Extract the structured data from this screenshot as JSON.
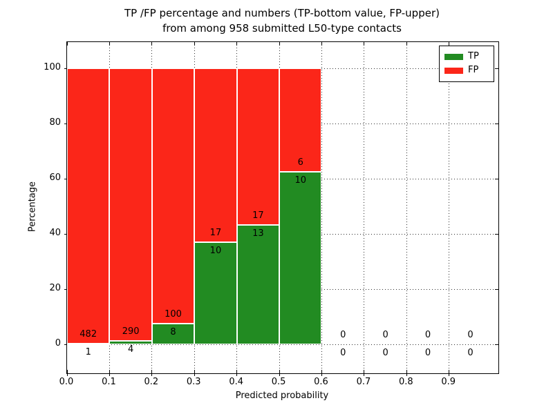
{
  "chart_data": {
    "type": "bar",
    "stacked": true,
    "title_line1": "TP /FP percentage and numbers (TP-bottom value, FP-upper)",
    "title_line2": "from among 958 submitted L50-type contacts",
    "xlabel": "Predicted probability",
    "ylabel": "Percentage",
    "total_submitted": 958,
    "x_ticks": [
      "0.0",
      "0.1",
      "0.2",
      "0.3",
      "0.4",
      "0.5",
      "0.6",
      "0.7",
      "0.8",
      "0.9"
    ],
    "y_ticks": [
      "0",
      "20",
      "40",
      "60",
      "80",
      "100"
    ],
    "y_tick_values": [
      0,
      20,
      40,
      60,
      80,
      100
    ],
    "ylim": [
      -10.5,
      109.5
    ],
    "xlim": [
      0,
      1.016
    ],
    "bin_width": 0.1,
    "grid": true,
    "legend_position": "upper-right",
    "legend": [
      {
        "label": "TP",
        "color": "#228b22"
      },
      {
        "label": "FP",
        "color": "#fb2619"
      }
    ],
    "bins": [
      {
        "x_start": 0.0,
        "x_end": 0.1,
        "tp_count": 1,
        "fp_count": 482,
        "tp_pct": 0.21,
        "fp_pct": 99.79
      },
      {
        "x_start": 0.1,
        "x_end": 0.2,
        "tp_count": 4,
        "fp_count": 290,
        "tp_pct": 1.36,
        "fp_pct": 98.64
      },
      {
        "x_start": 0.2,
        "x_end": 0.3,
        "tp_count": 8,
        "fp_count": 100,
        "tp_pct": 7.41,
        "fp_pct": 92.59
      },
      {
        "x_start": 0.3,
        "x_end": 0.4,
        "tp_count": 10,
        "fp_count": 17,
        "tp_pct": 37.04,
        "fp_pct": 62.96
      },
      {
        "x_start": 0.4,
        "x_end": 0.5,
        "tp_count": 13,
        "fp_count": 17,
        "tp_pct": 43.33,
        "fp_pct": 56.67
      },
      {
        "x_start": 0.5,
        "x_end": 0.6,
        "tp_count": 10,
        "fp_count": 6,
        "tp_pct": 62.5,
        "fp_pct": 37.5
      },
      {
        "x_start": 0.6,
        "x_end": 0.7,
        "tp_count": 0,
        "fp_count": 0,
        "tp_pct": 0,
        "fp_pct": 0
      },
      {
        "x_start": 0.7,
        "x_end": 0.8,
        "tp_count": 0,
        "fp_count": 0,
        "tp_pct": 0,
        "fp_pct": 0
      },
      {
        "x_start": 0.8,
        "x_end": 0.9,
        "tp_count": 0,
        "fp_count": 0,
        "tp_pct": 0,
        "fp_pct": 0
      },
      {
        "x_start": 0.9,
        "x_end": 1.0,
        "tp_count": 0,
        "fp_count": 0,
        "tp_pct": 0,
        "fp_pct": 0
      }
    ]
  }
}
